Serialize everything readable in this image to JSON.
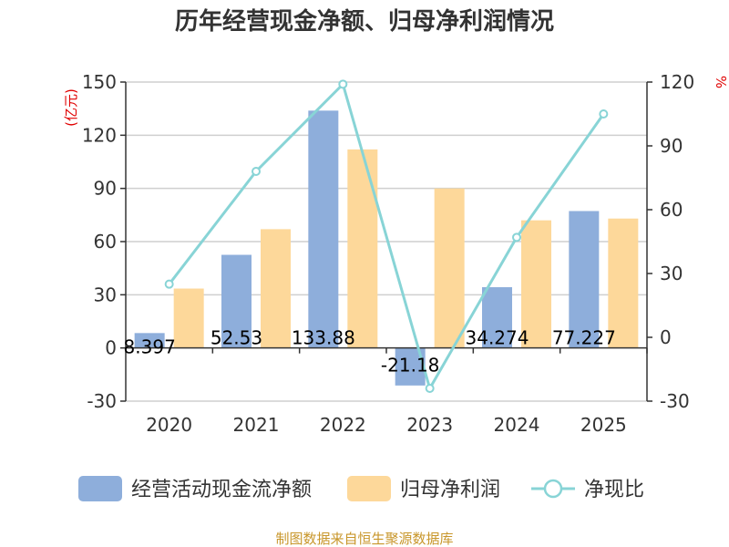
{
  "chart_data": {
    "type": "bar",
    "title": "历年经营现金净额、归母净利润情况",
    "categories": [
      "2020",
      "2021",
      "2022",
      "2023",
      "2024",
      "2025"
    ],
    "y_left": {
      "unit": "(亿元)",
      "ylim": [
        -30,
        150
      ],
      "ticks": [
        -30,
        0,
        30,
        60,
        90,
        120,
        150
      ]
    },
    "y_right": {
      "unit": "%",
      "ylim": [
        -30,
        120
      ],
      "ticks": [
        -30,
        0,
        30,
        60,
        90,
        120
      ]
    },
    "series": [
      {
        "name": "经营活动现金流净额",
        "type": "bar",
        "axis": "left",
        "color": "#8eaedb",
        "values": [
          8.397,
          52.53,
          133.88,
          -21.18,
          34.274,
          77.227
        ],
        "labels": [
          "8.397",
          "52.53",
          "133.88",
          "-21.18",
          "34.274",
          "77.227"
        ]
      },
      {
        "name": "归母净利润",
        "type": "bar",
        "axis": "left",
        "color": "#fdd89a",
        "values": [
          33.5,
          67,
          112,
          90,
          72,
          73
        ]
      },
      {
        "name": "净现比",
        "type": "line",
        "axis": "right",
        "color": "#88d4d6",
        "values": [
          25,
          78,
          119,
          -24,
          47,
          105
        ]
      }
    ],
    "legend": [
      "经营活动现金流净额",
      "归母净利润",
      "净现比"
    ],
    "legend_position": "bottom",
    "grid": true
  },
  "footer": {
    "source": "制图数据来自恒生聚源数据库"
  }
}
